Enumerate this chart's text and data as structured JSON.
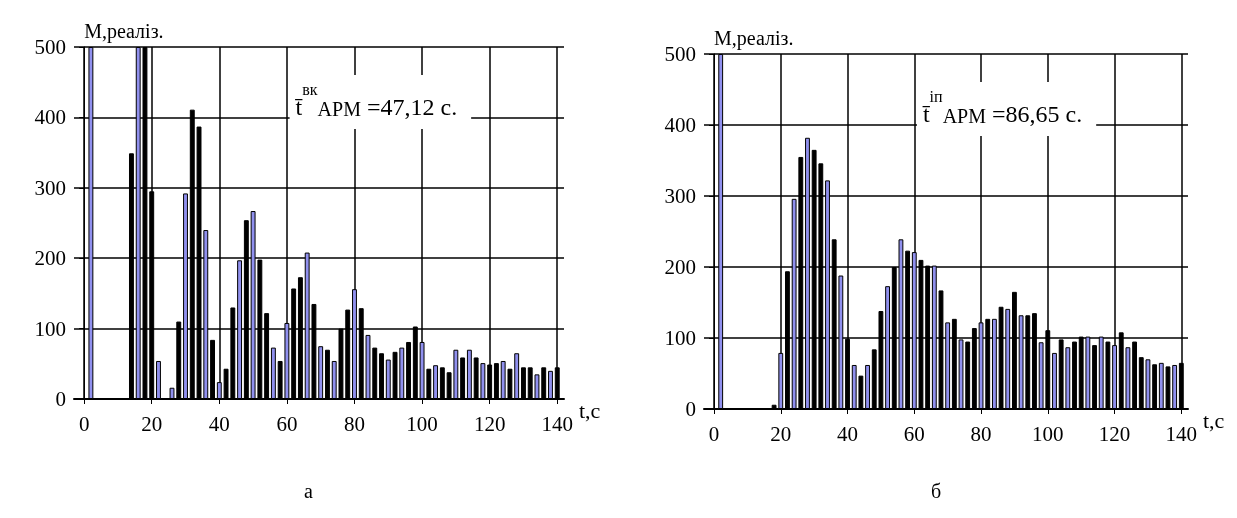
{
  "chart_data": [
    {
      "type": "bar",
      "title": "а",
      "xlabel": "t,c",
      "ylabel": "М,реаліз.",
      "annotations": [
        "t̄$^{вк}$$_{АРМ}$ =47,12 с."
      ],
      "x": [
        2,
        14,
        16,
        18,
        20,
        22,
        26,
        28,
        30,
        32,
        34,
        36,
        38,
        40,
        42,
        44,
        46,
        48,
        50,
        52,
        54,
        56,
        58,
        60,
        62,
        64,
        66,
        68,
        70,
        72,
        74,
        76,
        78,
        80,
        82,
        84,
        86,
        88,
        90,
        92,
        94,
        96,
        98,
        100,
        102,
        104,
        106,
        108,
        110,
        112,
        114,
        116,
        118,
        120,
        122,
        124,
        126,
        128,
        130,
        132,
        134,
        136,
        138,
        140
      ],
      "values": [
        500,
        349,
        500,
        500,
        295,
        54,
        16,
        110,
        292,
        411,
        387,
        240,
        84,
        24,
        43,
        130,
        197,
        254,
        267,
        198,
        122,
        73,
        54,
        108,
        157,
        173,
        208,
        135,
        75,
        70,
        54,
        100,
        127,
        156,
        129,
        91,
        73,
        65,
        56,
        67,
        73,
        81,
        103,
        81,
        43,
        48,
        45,
        38,
        70,
        59,
        70,
        59,
        51,
        49,
        51,
        54,
        43,
        65,
        45,
        45,
        35,
        45,
        40,
        45
      ],
      "colors": [
        "#9090ee",
        "#000000",
        "#9090ee",
        "#000000",
        "#000000",
        "#9090ee",
        "#9090ee",
        "#000000",
        "#9090ee",
        "#000000",
        "#000000",
        "#9090ee",
        "#000000",
        "#9090ee",
        "#000000",
        "#000000",
        "#9090ee",
        "#000000",
        "#9090ee",
        "#000000",
        "#000000",
        "#9090ee",
        "#000000",
        "#9090ee",
        "#000000",
        "#000000",
        "#9090ee",
        "#000000",
        "#9090ee",
        "#000000",
        "#9090ee",
        "#000000",
        "#000000",
        "#9090ee",
        "#000000",
        "#9090ee",
        "#000000",
        "#000000",
        "#9090ee",
        "#000000",
        "#9090ee",
        "#000000",
        "#000000",
        "#9090ee",
        "#000000",
        "#9090ee",
        "#000000",
        "#000000",
        "#9090ee",
        "#000000",
        "#9090ee",
        "#000000",
        "#9090ee",
        "#000000",
        "#000000",
        "#9090ee",
        "#000000",
        "#9090ee",
        "#000000",
        "#000000",
        "#9090ee",
        "#000000",
        "#9090ee",
        "#000000"
      ],
      "xlim": [
        -3,
        142
      ],
      "xticks": [
        0,
        20,
        40,
        60,
        80,
        100,
        120,
        140
      ],
      "ylim": [
        0,
        500
      ],
      "yticks": [
        0,
        100,
        200,
        300,
        400,
        500
      ],
      "grid": true
    },
    {
      "type": "bar",
      "title": "б",
      "xlabel": "t,c",
      "ylabel": "М,реаліз.",
      "annotations": [
        "t̄$^{іп}$$_{АРМ}$ =86,65 с."
      ],
      "x": [
        2,
        18,
        20,
        22,
        24,
        26,
        28,
        30,
        32,
        34,
        36,
        38,
        40,
        42,
        44,
        46,
        48,
        50,
        52,
        54,
        56,
        58,
        60,
        62,
        64,
        66,
        68,
        70,
        72,
        74,
        76,
        78,
        80,
        82,
        84,
        86,
        88,
        90,
        92,
        94,
        96,
        98,
        100,
        102,
        104,
        106,
        108,
        110,
        112,
        114,
        116,
        118,
        120,
        122,
        124,
        126,
        128,
        130,
        132,
        134,
        136,
        138,
        140
      ],
      "values": [
        500,
        6,
        79,
        194,
        296,
        355,
        382,
        365,
        346,
        322,
        239,
        188,
        99,
        62,
        47,
        62,
        84,
        138,
        173,
        200,
        239,
        223,
        221,
        210,
        202,
        202,
        167,
        122,
        127,
        98,
        95,
        114,
        122,
        127,
        127,
        144,
        141,
        165,
        132,
        132,
        135,
        94,
        111,
        79,
        98,
        87,
        95,
        102,
        102,
        90,
        102,
        95,
        90,
        108,
        87,
        95,
        73,
        70,
        63,
        65,
        60,
        62,
        65
      ],
      "colors": [
        "#9090ee",
        "#000000",
        "#9090ee",
        "#000000",
        "#9090ee",
        "#000000",
        "#9090ee",
        "#000000",
        "#000000",
        "#9090ee",
        "#000000",
        "#9090ee",
        "#000000",
        "#9090ee",
        "#000000",
        "#9090ee",
        "#000000",
        "#000000",
        "#9090ee",
        "#000000",
        "#9090ee",
        "#000000",
        "#9090ee",
        "#000000",
        "#000000",
        "#9090ee",
        "#000000",
        "#9090ee",
        "#000000",
        "#9090ee",
        "#000000",
        "#000000",
        "#9090ee",
        "#000000",
        "#9090ee",
        "#000000",
        "#9090ee",
        "#000000",
        "#9090ee",
        "#000000",
        "#000000",
        "#9090ee",
        "#000000",
        "#9090ee",
        "#000000",
        "#9090ee",
        "#000000",
        "#000000",
        "#9090ee",
        "#000000",
        "#9090ee",
        "#000000",
        "#9090ee",
        "#000000",
        "#9090ee",
        "#000000",
        "#000000",
        "#9090ee",
        "#000000",
        "#9090ee",
        "#000000",
        "#9090ee",
        "#000000"
      ],
      "xlim": [
        -3,
        142
      ],
      "xticks": [
        0,
        20,
        40,
        60,
        80,
        100,
        120,
        140
      ],
      "ylim": [
        0,
        500
      ],
      "yticks": [
        0,
        100,
        200,
        300,
        400,
        500
      ],
      "grid": true
    }
  ]
}
